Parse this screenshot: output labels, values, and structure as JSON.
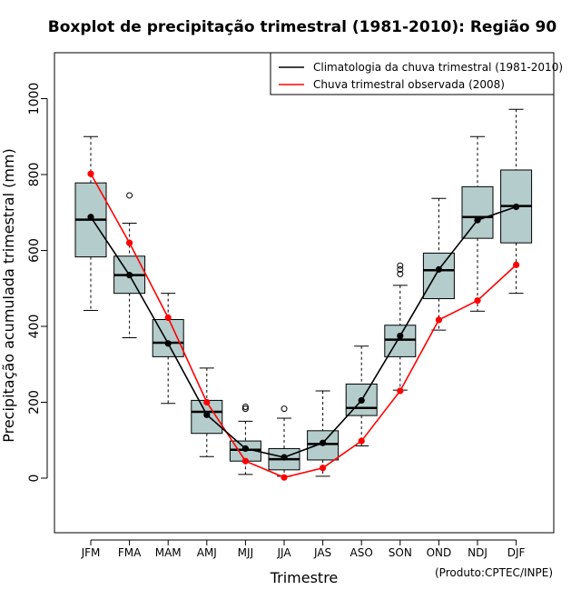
{
  "chart_data": {
    "type": "boxplot",
    "title": "Boxplot de precipitação trimestral (1981-2010): Região 90",
    "xlabel": "Trimestre",
    "ylabel": "Precipitação acumulada trimestral (mm)",
    "ylim": [
      -140,
      1110
    ],
    "yticks": [
      0,
      200,
      400,
      600,
      800,
      1000
    ],
    "categories": [
      "JFM",
      "FMA",
      "MAM",
      "AMJ",
      "MJJ",
      "JJA",
      "JAS",
      "ASO",
      "SON",
      "OND",
      "NDJ",
      "DJF"
    ],
    "boxes": [
      {
        "whisker_low": 442,
        "q1": 583,
        "median": 681,
        "q3": 778,
        "whisker_high": 900,
        "outliers": []
      },
      {
        "whisker_low": 370,
        "q1": 487,
        "median": 535,
        "q3": 585,
        "whisker_high": 672,
        "outliers": [
          745
        ]
      },
      {
        "whisker_low": 197,
        "q1": 320,
        "median": 357,
        "q3": 418,
        "whisker_high": 487,
        "outliers": []
      },
      {
        "whisker_low": 57,
        "q1": 118,
        "median": 175,
        "q3": 205,
        "whisker_high": 290,
        "outliers": []
      },
      {
        "whisker_low": 10,
        "q1": 45,
        "median": 75,
        "q3": 98,
        "whisker_high": 150,
        "outliers": [
          183,
          188
        ]
      },
      {
        "whisker_low": 5,
        "q1": 22,
        "median": 50,
        "q3": 78,
        "whisker_high": 158,
        "outliers": [
          183
        ]
      },
      {
        "whisker_low": 5,
        "q1": 48,
        "median": 90,
        "q3": 125,
        "whisker_high": 230,
        "outliers": []
      },
      {
        "whisker_low": 85,
        "q1": 165,
        "median": 185,
        "q3": 248,
        "whisker_high": 348,
        "outliers": []
      },
      {
        "whisker_low": 232,
        "q1": 320,
        "median": 365,
        "q3": 403,
        "whisker_high": 508,
        "outliers": [
          538,
          550,
          560
        ]
      },
      {
        "whisker_low": 390,
        "q1": 473,
        "median": 548,
        "q3": 593,
        "whisker_high": 737,
        "outliers": []
      },
      {
        "whisker_low": 440,
        "q1": 632,
        "median": 688,
        "q3": 768,
        "whisker_high": 900,
        "outliers": []
      },
      {
        "whisker_low": 487,
        "q1": 620,
        "median": 717,
        "q3": 812,
        "whisker_high": 972,
        "outliers": []
      }
    ],
    "series": [
      {
        "name": "Climatologia da chuva trimestral (1981-2010)",
        "color": "#000000",
        "values": [
          688,
          535,
          355,
          167,
          78,
          55,
          93,
          205,
          375,
          550,
          680,
          715
        ]
      },
      {
        "name": "Chuva trimestral observada (2008)",
        "color": "#ff0000",
        "values": [
          802,
          620,
          423,
          200,
          45,
          2,
          27,
          98,
          230,
          417,
          468,
          562
        ]
      }
    ],
    "box_fill": "#b4cccc",
    "legend_position": "top-right",
    "credit": "(Produto:CPTEC/INPE)"
  }
}
